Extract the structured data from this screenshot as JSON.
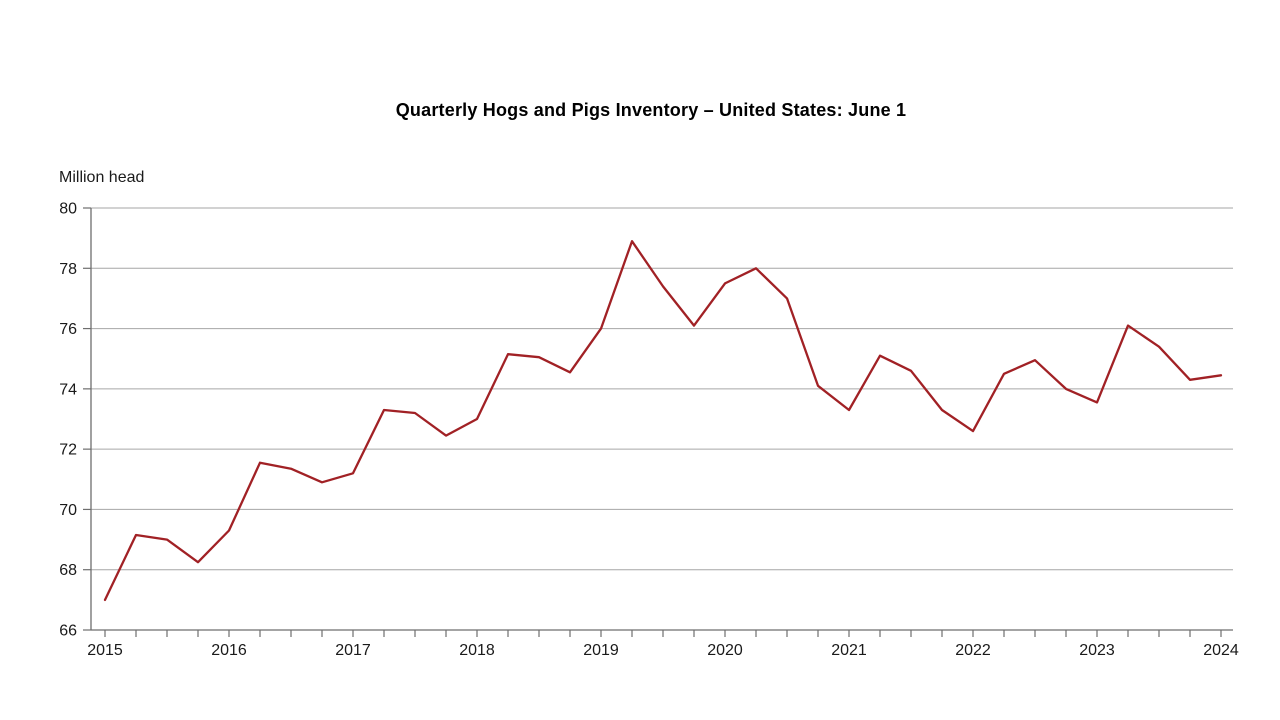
{
  "chart_data": {
    "type": "line",
    "title": "Quarterly Hogs and Pigs Inventory – United States: June 1",
    "ylabel": "Million head",
    "xlabel": "",
    "legend_position": "none",
    "grid": "horizontal",
    "ylim": [
      66,
      80
    ],
    "y_ticks": [
      66,
      68,
      70,
      72,
      74,
      76,
      78,
      80
    ],
    "x_tick_labels": [
      "2015",
      "2016",
      "2017",
      "2018",
      "2019",
      "2020",
      "2021",
      "2022",
      "2023",
      "2024"
    ],
    "x": [
      2015.0,
      2015.25,
      2015.5,
      2015.75,
      2016.0,
      2016.25,
      2016.5,
      2016.75,
      2017.0,
      2017.25,
      2017.5,
      2017.75,
      2018.0,
      2018.25,
      2018.5,
      2018.75,
      2019.0,
      2019.25,
      2019.5,
      2019.75,
      2020.0,
      2020.25,
      2020.5,
      2020.75,
      2021.0,
      2021.25,
      2021.5,
      2021.75,
      2022.0,
      2022.25,
      2022.5,
      2022.75,
      2023.0,
      2023.25,
      2023.5,
      2023.75,
      2024.0
    ],
    "series": [
      {
        "values": [
          67.0,
          69.15,
          69.0,
          68.25,
          69.3,
          71.55,
          71.35,
          70.9,
          71.2,
          73.3,
          73.2,
          72.45,
          73.0,
          75.15,
          75.05,
          74.55,
          76.0,
          78.9,
          77.4,
          76.1,
          77.5,
          78.0,
          77.0,
          74.1,
          73.3,
          75.1,
          74.6,
          73.3,
          72.6,
          74.5,
          74.95,
          74.0,
          73.55,
          76.1,
          75.4,
          74.3,
          74.45
        ]
      }
    ],
    "colors": {
      "line": "#A12125",
      "grid": "#A6A6A6",
      "axis": "#6E6E6E",
      "tick_text": "#1A1A1A"
    }
  }
}
